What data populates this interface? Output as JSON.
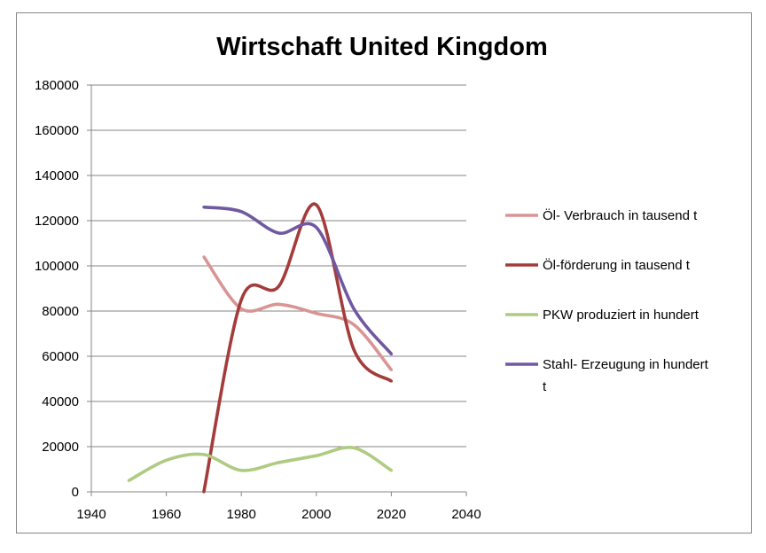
{
  "chart_data": {
    "type": "line",
    "title": "Wirtschaft United Kingdom",
    "xlabel": "",
    "ylabel": "",
    "xlim": [
      1940,
      2040
    ],
    "ylim": [
      0,
      180000
    ],
    "x_ticks": [
      1940,
      1960,
      1980,
      2000,
      2020,
      2040
    ],
    "y_ticks": [
      0,
      20000,
      40000,
      60000,
      80000,
      100000,
      120000,
      140000,
      160000,
      180000
    ],
    "grid": "horizontal",
    "smooth": true,
    "legend_position": "right",
    "series": [
      {
        "name": "Öl- Verbrauch in tausend  t",
        "legend_lines": [
          "Öl- Verbrauch in tausend  t"
        ],
        "color": "#D99594",
        "points": [
          [
            1970,
            104000
          ],
          [
            1980,
            81000
          ],
          [
            1990,
            83000
          ],
          [
            2000,
            79000
          ],
          [
            2010,
            74000
          ],
          [
            2020,
            54000
          ]
        ]
      },
      {
        "name": "Öl-förderung in tausend  t",
        "legend_lines": [
          "Öl-förderung in tausend  t"
        ],
        "color": "#A33C3A",
        "points": [
          [
            1970,
            0
          ],
          [
            1980,
            85000
          ],
          [
            1990,
            91000
          ],
          [
            2000,
            127000
          ],
          [
            2010,
            63000
          ],
          [
            2020,
            49000
          ]
        ]
      },
      {
        "name": "PKW produziert  in hundert",
        "legend_lines": [
          "PKW produziert  in hundert"
        ],
        "color": "#AECB81",
        "points": [
          [
            1950,
            5000
          ],
          [
            1960,
            14000
          ],
          [
            1970,
            16500
          ],
          [
            1980,
            9500
          ],
          [
            1990,
            13000
          ],
          [
            2000,
            16000
          ],
          [
            2010,
            19500
          ],
          [
            2020,
            9500
          ]
        ]
      },
      {
        "name": "Stahl-  Erzeugung in hundert t",
        "legend_lines": [
          "Stahl-  Erzeugung in hundert",
          "t"
        ],
        "color": "#7059A0",
        "points": [
          [
            1970,
            126000
          ],
          [
            1980,
            124000
          ],
          [
            1990,
            114500
          ],
          [
            2000,
            117000
          ],
          [
            2010,
            81000
          ],
          [
            2020,
            61000
          ]
        ]
      }
    ]
  }
}
